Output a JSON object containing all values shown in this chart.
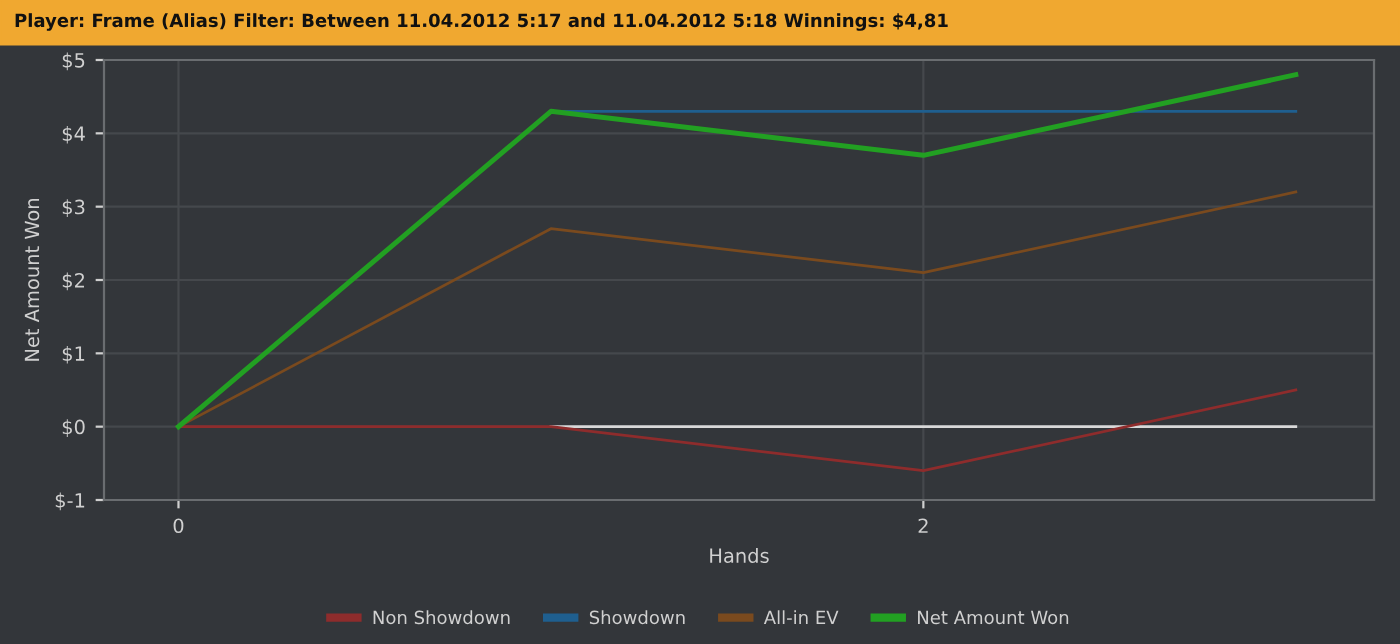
{
  "chart_data": {
    "type": "line",
    "title": "Player: Frame (Alias) Filter: Between 11.04.2012 5:17 and 11.04.2012 5:18 Winnings: $4,81",
    "xlabel": "Hands",
    "ylabel": "Net Amount Won",
    "x": [
      0,
      1,
      2,
      3
    ],
    "series": [
      {
        "color": "#d8d8d8",
        "values": [
          null,
          0,
          0,
          0
        ]
      },
      {
        "name": "Non Showdown",
        "color": "#8e2c2c",
        "values": [
          0,
          0,
          -0.6,
          0.5
        ]
      },
      {
        "name": "Showdown",
        "color": "#1f5f8f",
        "values": [
          0,
          4.3,
          4.3,
          4.3
        ]
      },
      {
        "name": "All-in EV",
        "color": "#7a4a1e",
        "values": [
          0,
          2.7,
          2.1,
          3.2
        ]
      },
      {
        "name": "Net Amount Won",
        "color": "#22a022",
        "values": [
          0,
          4.3,
          3.7,
          4.8
        ]
      }
    ],
    "xlim": [
      -0.2,
      3.21
    ],
    "ylim": [
      -1,
      5
    ],
    "xticks": [
      0,
      2
    ],
    "yticks": [
      {
        "value": -1,
        "label": "$-1"
      },
      {
        "value": 0,
        "label": "$0"
      },
      {
        "value": 1,
        "label": "$1"
      },
      {
        "value": 2,
        "label": "$2"
      },
      {
        "value": 3,
        "label": "$3"
      },
      {
        "value": 4,
        "label": "$4"
      },
      {
        "value": 5,
        "label": "$5"
      }
    ],
    "grid": true,
    "legend": "bottom",
    "marker": "none",
    "line_style": "solid"
  }
}
